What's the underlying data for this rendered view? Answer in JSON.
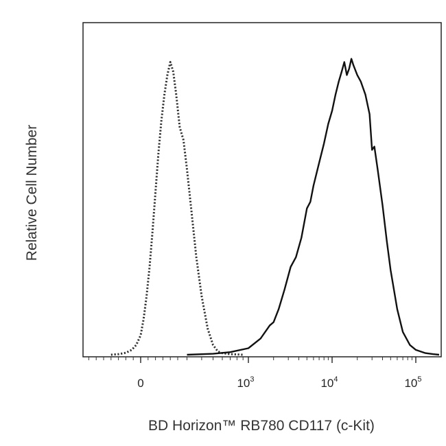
{
  "chart_data": {
    "type": "line",
    "title": "",
    "xlabel": "BD Horizon™ RB780 CD117 (c-Kit)",
    "ylabel": "Relative Cell Number",
    "x_scale": "biexponential",
    "xlim": [
      -400,
      200000
    ],
    "ylim": [
      0,
      100
    ],
    "grid": false,
    "legend": "none",
    "x_ticks": [
      {
        "value": 0,
        "base": "0",
        "exp": ""
      },
      {
        "value": 1000,
        "base": "10",
        "exp": "3"
      },
      {
        "value": 10000,
        "base": "10",
        "exp": "4"
      },
      {
        "value": 100000,
        "base": "10",
        "exp": "5"
      }
    ],
    "series": [
      {
        "style": "dotted",
        "color": "#333333",
        "x": [
          -200,
          -150,
          -100,
          -60,
          -30,
          0,
          20,
          40,
          60,
          80,
          100,
          120,
          140,
          160,
          180,
          200,
          220,
          240,
          260,
          280,
          300,
          330,
          360,
          400,
          450,
          500,
          550,
          600,
          700,
          800,
          900
        ],
        "y": [
          0,
          0.2,
          0.6,
          1.5,
          3,
          6,
          11,
          18,
          27,
          38,
          50,
          62,
          72,
          80,
          86,
          90,
          87,
          80,
          70,
          66,
          57,
          43,
          30,
          18,
          8,
          3,
          1,
          0.5,
          0.2,
          0.1,
          0
        ]
      },
      {
        "style": "solid",
        "color": "#111111",
        "x": [
          300,
          500,
          700,
          1000,
          1400,
          1800,
          2000,
          2300,
          2700,
          3200,
          3700,
          4300,
          5000,
          5500,
          6000,
          7000,
          8000,
          9000,
          10000,
          11000,
          12000,
          13000,
          14000,
          15000,
          16000,
          17000,
          18000,
          20000,
          22000,
          25000,
          28000,
          30000,
          32000,
          35000,
          40000,
          45000,
          50000,
          60000,
          70000,
          85000,
          100000,
          130000,
          160000,
          190000
        ],
        "y": [
          0,
          0.3,
          0.8,
          2,
          5,
          9,
          10,
          14,
          20,
          27,
          30,
          36,
          45,
          47,
          52,
          59,
          65,
          71,
          75,
          80,
          84,
          87,
          90,
          86,
          88,
          91,
          89,
          86,
          84,
          80,
          74,
          63,
          64,
          57,
          46,
          35,
          26,
          14,
          7,
          3,
          1.5,
          0.5,
          0.2,
          0
        ]
      }
    ]
  }
}
